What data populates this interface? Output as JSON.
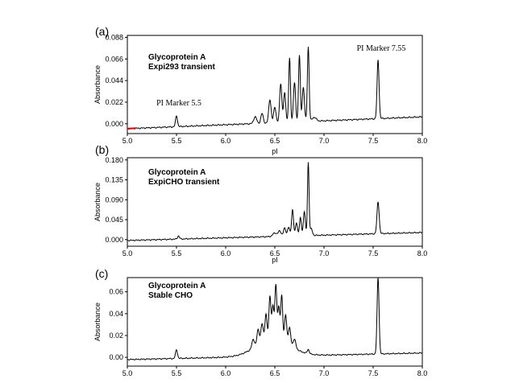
{
  "chart_data": [
    {
      "panel": "(a)",
      "type": "line",
      "xlabel": "pI",
      "ylabel": "Absorbance",
      "xlim": [
        5.0,
        8.0
      ],
      "ylim": [
        -0.01,
        0.09
      ],
      "x_ticks": [
        "5.0",
        "5.5",
        "6.0",
        "6.5",
        "7.0",
        "7.5",
        "8.0"
      ],
      "y_ticks": [
        "0.000",
        "0.022",
        "0.044",
        "0.066",
        "0.088"
      ],
      "sample_label": [
        "Glycoprotein A",
        "Expi293 transient"
      ],
      "annotations": [
        "PI Marker 5.5",
        "PI Marker 7.55"
      ],
      "baseline": -0.005,
      "drift": 0.008,
      "peaks": [
        {
          "x": 5.5,
          "h": 0.011,
          "w": 0.01
        },
        {
          "x": 6.3,
          "h": 0.007,
          "w": 0.015
        },
        {
          "x": 6.37,
          "h": 0.01,
          "w": 0.012
        },
        {
          "x": 6.45,
          "h": 0.024,
          "w": 0.012
        },
        {
          "x": 6.5,
          "h": 0.016,
          "w": 0.012
        },
        {
          "x": 6.56,
          "h": 0.04,
          "w": 0.011
        },
        {
          "x": 6.6,
          "h": 0.03,
          "w": 0.011
        },
        {
          "x": 6.65,
          "h": 0.065,
          "w": 0.009
        },
        {
          "x": 6.7,
          "h": 0.04,
          "w": 0.011
        },
        {
          "x": 6.75,
          "h": 0.068,
          "w": 0.009
        },
        {
          "x": 6.79,
          "h": 0.035,
          "w": 0.011
        },
        {
          "x": 6.84,
          "h": 0.076,
          "w": 0.009
        },
        {
          "x": 6.9,
          "h": 0.004,
          "w": 0.02
        },
        {
          "x": 7.55,
          "h": 0.06,
          "w": 0.01
        }
      ]
    },
    {
      "panel": "(b)",
      "type": "line",
      "xlabel": "pI",
      "ylabel": "Absorbance",
      "xlim": [
        5.0,
        8.0
      ],
      "ylim": [
        -0.015,
        0.185
      ],
      "x_ticks": [
        "5.0",
        "5.5",
        "6.0",
        "6.5",
        "7.0",
        "7.5",
        "8.0"
      ],
      "y_ticks": [
        "0.000",
        "0.045",
        "0.090",
        "0.135",
        "0.180"
      ],
      "sample_label": [
        "Glycoprotein A",
        "ExpiCHO transient"
      ],
      "baseline": -0.002,
      "drift": 0.012,
      "peaks": [
        {
          "x": 5.52,
          "h": 0.007,
          "w": 0.01
        },
        {
          "x": 6.5,
          "h": 0.008,
          "w": 0.02
        },
        {
          "x": 6.55,
          "h": 0.012,
          "w": 0.015
        },
        {
          "x": 6.6,
          "h": 0.018,
          "w": 0.012
        },
        {
          "x": 6.64,
          "h": 0.02,
          "w": 0.011
        },
        {
          "x": 6.68,
          "h": 0.06,
          "w": 0.01
        },
        {
          "x": 6.72,
          "h": 0.03,
          "w": 0.01
        },
        {
          "x": 6.76,
          "h": 0.04,
          "w": 0.01
        },
        {
          "x": 6.8,
          "h": 0.055,
          "w": 0.01
        },
        {
          "x": 6.84,
          "h": 0.165,
          "w": 0.008
        },
        {
          "x": 6.87,
          "h": 0.015,
          "w": 0.012
        },
        {
          "x": 7.55,
          "h": 0.072,
          "w": 0.011
        }
      ]
    },
    {
      "panel": "(c)",
      "type": "line",
      "xlabel": "",
      "ylabel": "Absorbance",
      "xlim": [
        5.0,
        8.0
      ],
      "ylim": [
        -0.008,
        0.073
      ],
      "x_ticks": [
        "5.0",
        "5.5",
        "6.0",
        "6.5",
        "7.0",
        "7.5",
        "8.0"
      ],
      "y_ticks": [
        "0.00",
        "0.02",
        "0.04",
        "0.06"
      ],
      "sample_label": [
        "Glycoprotein A",
        "Stable CHO"
      ],
      "baseline": -0.002,
      "drift": 0.004,
      "hump": {
        "x": 6.48,
        "h": 0.016,
        "w": 0.17
      },
      "peaks": [
        {
          "x": 5.5,
          "h": 0.008,
          "w": 0.01
        },
        {
          "x": 6.28,
          "h": 0.008,
          "w": 0.013
        },
        {
          "x": 6.33,
          "h": 0.014,
          "w": 0.012
        },
        {
          "x": 6.37,
          "h": 0.017,
          "w": 0.012
        },
        {
          "x": 6.41,
          "h": 0.024,
          "w": 0.011
        },
        {
          "x": 6.45,
          "h": 0.04,
          "w": 0.01
        },
        {
          "x": 6.48,
          "h": 0.03,
          "w": 0.01
        },
        {
          "x": 6.51,
          "h": 0.05,
          "w": 0.01
        },
        {
          "x": 6.54,
          "h": 0.03,
          "w": 0.01
        },
        {
          "x": 6.57,
          "h": 0.042,
          "w": 0.01
        },
        {
          "x": 6.61,
          "h": 0.026,
          "w": 0.011
        },
        {
          "x": 6.65,
          "h": 0.016,
          "w": 0.012
        },
        {
          "x": 6.7,
          "h": 0.008,
          "w": 0.014
        },
        {
          "x": 6.84,
          "h": 0.004,
          "w": 0.01
        },
        {
          "x": 7.55,
          "h": 0.07,
          "w": 0.01
        }
      ]
    }
  ]
}
